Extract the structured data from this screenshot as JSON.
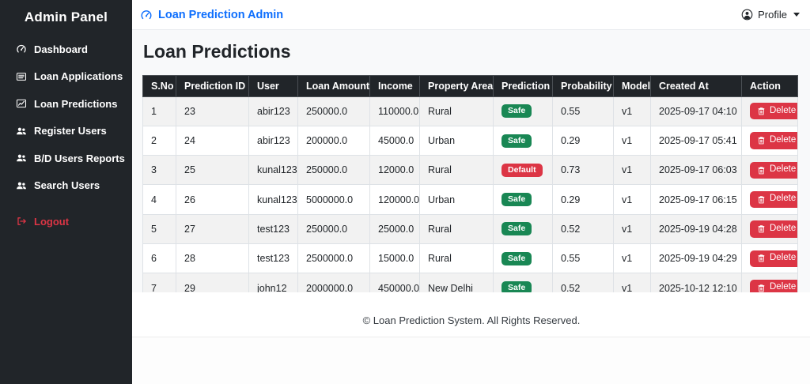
{
  "sidebar": {
    "title": "Admin Panel",
    "items": [
      {
        "label": "Dashboard",
        "icon": "speedometer-icon",
        "name": "sidebar-item-dashboard",
        "caret": false
      },
      {
        "label": "Loan Applications",
        "icon": "list-icon",
        "name": "sidebar-item-loan-applications",
        "caret": true
      },
      {
        "label": "Loan Predictions",
        "icon": "chart-line-icon",
        "name": "sidebar-item-loan-predictions",
        "caret": false
      },
      {
        "label": "Register Users",
        "icon": "users-icon",
        "name": "sidebar-item-register-users",
        "caret": false
      },
      {
        "label": "B/D Users Reports",
        "icon": "users-icon",
        "name": "sidebar-item-bd-users-reports",
        "caret": false
      },
      {
        "label": "Search Users",
        "icon": "users-icon",
        "name": "sidebar-item-search-users",
        "caret": false
      }
    ],
    "logout": {
      "label": "Logout",
      "icon": "logout-icon",
      "name": "sidebar-item-logout",
      "color": "#dc3545"
    }
  },
  "navbar": {
    "brand": "Loan Prediction Admin",
    "brand_icon": "speedometer-icon",
    "brand_color": "#0d6efd",
    "profile_label": "Profile",
    "profile_icon": "person-circle-icon"
  },
  "page": {
    "title": "Loan Predictions"
  },
  "table": {
    "columns": [
      "S.No",
      "Prediction ID",
      "User",
      "Loan Amount",
      "Income",
      "Property Area",
      "Prediction",
      "Probability",
      "Model",
      "Created At",
      "Action"
    ],
    "delete_label": "Delete",
    "badge_colors": {
      "Safe": "#198754",
      "Default": "#dc3545"
    },
    "rows": [
      {
        "sno": "1",
        "prediction_id": "23",
        "user": "abir123",
        "loan_amount": "250000.0",
        "income": "110000.0",
        "property_area": "Rural",
        "prediction": "Safe",
        "probability": "0.55",
        "model": "v1",
        "created_at": "2025-09-17 04:10"
      },
      {
        "sno": "2",
        "prediction_id": "24",
        "user": "abir123",
        "loan_amount": "200000.0",
        "income": "45000.0",
        "property_area": "Urban",
        "prediction": "Safe",
        "probability": "0.29",
        "model": "v1",
        "created_at": "2025-09-17 05:41"
      },
      {
        "sno": "3",
        "prediction_id": "25",
        "user": "kunal123",
        "loan_amount": "250000.0",
        "income": "12000.0",
        "property_area": "Rural",
        "prediction": "Default",
        "probability": "0.73",
        "model": "v1",
        "created_at": "2025-09-17 06:03"
      },
      {
        "sno": "4",
        "prediction_id": "26",
        "user": "kunal123",
        "loan_amount": "5000000.0",
        "income": "120000.0",
        "property_area": "Urban",
        "prediction": "Safe",
        "probability": "0.29",
        "model": "v1",
        "created_at": "2025-09-17 06:15"
      },
      {
        "sno": "5",
        "prediction_id": "27",
        "user": "test123",
        "loan_amount": "250000.0",
        "income": "25000.0",
        "property_area": "Rural",
        "prediction": "Safe",
        "probability": "0.52",
        "model": "v1",
        "created_at": "2025-09-19 04:28"
      },
      {
        "sno": "6",
        "prediction_id": "28",
        "user": "test123",
        "loan_amount": "2500000.0",
        "income": "15000.0",
        "property_area": "Rural",
        "prediction": "Safe",
        "probability": "0.55",
        "model": "v1",
        "created_at": "2025-09-19 04:29"
      },
      {
        "sno": "7",
        "prediction_id": "29",
        "user": "john12",
        "loan_amount": "2000000.0",
        "income": "450000.0",
        "property_area": "New Delhi",
        "prediction": "Safe",
        "probability": "0.52",
        "model": "v1",
        "created_at": "2025-10-12 12:10"
      }
    ]
  },
  "footer": {
    "text": "© Loan Prediction System. All Rights Reserved."
  }
}
